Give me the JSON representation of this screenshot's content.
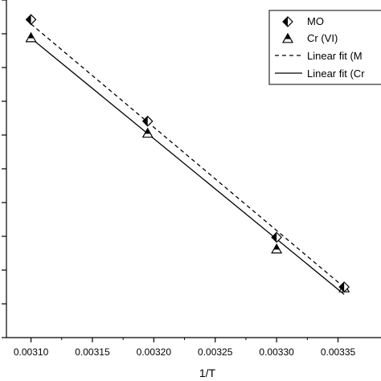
{
  "chart_data": {
    "type": "scatter",
    "title": "",
    "xlabel": "1/T",
    "ylabel": "",
    "xlim": [
      0.00308,
      0.003385
    ],
    "ylim": [
      0,
      1
    ],
    "x_ticks": [
      "0.00310",
      "0.00315",
      "0.00320",
      "0.00325",
      "0.00330",
      "0.00335"
    ],
    "x_tick_values": [
      0.0031,
      0.00315,
      0.0032,
      0.00325,
      0.0033,
      0.00335
    ],
    "y_ticks_count": 11,
    "grid": false,
    "legend_position": "top-right",
    "series": [
      {
        "name": "MO",
        "marker": "half-filled-diamond",
        "color": "#000000",
        "x": [
          0.0031,
          0.003195,
          0.0033,
          0.003355
        ],
        "y": [
          0.942,
          0.641,
          0.297,
          0.15
        ]
      },
      {
        "name": "Cr (VI)",
        "marker": "half-filled-triangle",
        "color": "#000000",
        "x": [
          0.0031,
          0.003195,
          0.0033,
          0.003355
        ],
        "y": [
          0.888,
          0.605,
          0.262,
          0.147
        ]
      }
    ],
    "fits": [
      {
        "name": "Linear fit (M",
        "style": "dashed",
        "color": "#000000",
        "x": [
          0.0031,
          0.003355
        ],
        "y": [
          0.929,
          0.149
        ]
      },
      {
        "name": "Linear fit (Cr",
        "style": "solid",
        "color": "#000000",
        "x": [
          0.0031,
          0.003355
        ],
        "y": [
          0.887,
          0.128
        ]
      }
    ]
  }
}
